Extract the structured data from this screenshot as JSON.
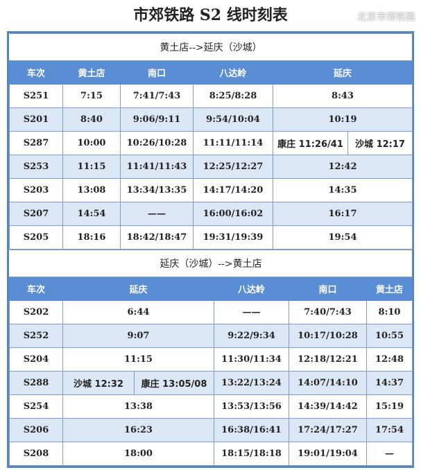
{
  "title": "市郊铁路 S2 线时刻表",
  "watermark": "北京市郊铁路",
  "colors": {
    "header_bg": "#5a8ed4",
    "alt_row_bg": "#dce7f5",
    "border": "#5784c0"
  },
  "outbound": {
    "direction": "黄土店-->延庆（沙城）",
    "headers": [
      "车次",
      "黄土店",
      "南口",
      "八达岭",
      "延庆"
    ],
    "rows": [
      {
        "train": "S251",
        "cells": [
          "7:15",
          "7:41/7:43",
          "8:25/8:28",
          "8:43"
        ]
      },
      {
        "train": "S201",
        "cells": [
          "8:40",
          "9:06/9:11",
          "9:54/10:04",
          "10:19"
        ]
      },
      {
        "train": "S287",
        "cells": [
          "10:00",
          "10:26/10:28",
          "11:11/11:14",
          [
            "康庄 11:26/41",
            "沙城 12:17"
          ]
        ]
      },
      {
        "train": "S253",
        "cells": [
          "11:15",
          "11:41/11:43",
          "12:25/12:27",
          "12:42"
        ]
      },
      {
        "train": "S203",
        "cells": [
          "13:08",
          "13:34/13:35",
          "14:17/14:20",
          "14:35"
        ]
      },
      {
        "train": "S207",
        "cells": [
          "14:54",
          "——",
          "16:00/16:02",
          "16:17"
        ]
      },
      {
        "train": "S205",
        "cells": [
          "18:16",
          "18:42/18:47",
          "19:31/19:39",
          "19:54"
        ]
      }
    ]
  },
  "inbound": {
    "direction": "延庆（沙城）-->黄土店",
    "headers": [
      "车次",
      "延庆",
      "八达岭",
      "南口",
      "黄土店"
    ],
    "rows": [
      {
        "train": "S202",
        "cells": [
          "6:44",
          "——",
          "7:40/7:43",
          "8:10"
        ]
      },
      {
        "train": "S252",
        "cells": [
          "9:07",
          "9:22/9:34",
          "10:17/10:28",
          "10:55"
        ]
      },
      {
        "train": "S204",
        "cells": [
          "11:15",
          "11:30/11:34",
          "12:18/12:21",
          "12:48"
        ]
      },
      {
        "train": "S288",
        "cells": [
          [
            "沙城 12:32",
            "康庄 13:05/08"
          ],
          "13:22/13:24",
          "14:07/14:10",
          "14:37"
        ]
      },
      {
        "train": "S254",
        "cells": [
          "13:38",
          "13:53/13:56",
          "14:39/14:42",
          "15:19"
        ]
      },
      {
        "train": "S206",
        "cells": [
          "16:23",
          "16:38/16:41",
          "17:24/17:27",
          "17:54"
        ]
      },
      {
        "train": "S208",
        "cells": [
          "18:00",
          "18:15/18:18",
          "19:01/19:04",
          "—"
        ]
      }
    ]
  }
}
